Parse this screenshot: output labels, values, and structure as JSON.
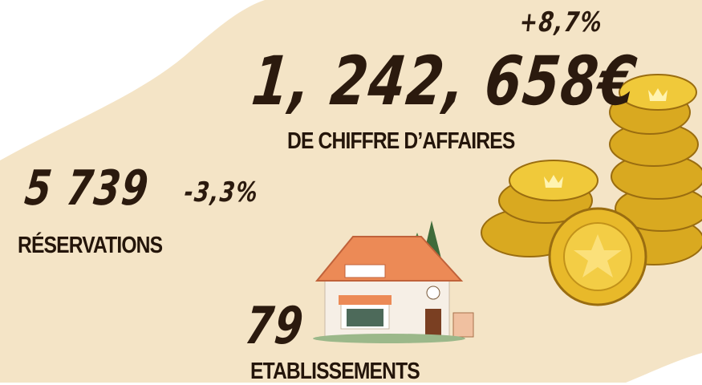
{
  "revenue": {
    "change": "+8,7%",
    "value": "1, 242, 658€",
    "label": "DE CHIFFRE D’AFFAIRES"
  },
  "bookings": {
    "value": "5 739",
    "change": "-3,3%",
    "label": "RÉSERVATIONS"
  },
  "venues": {
    "value": "79",
    "label": "ETABLISSEMENTS"
  }
}
